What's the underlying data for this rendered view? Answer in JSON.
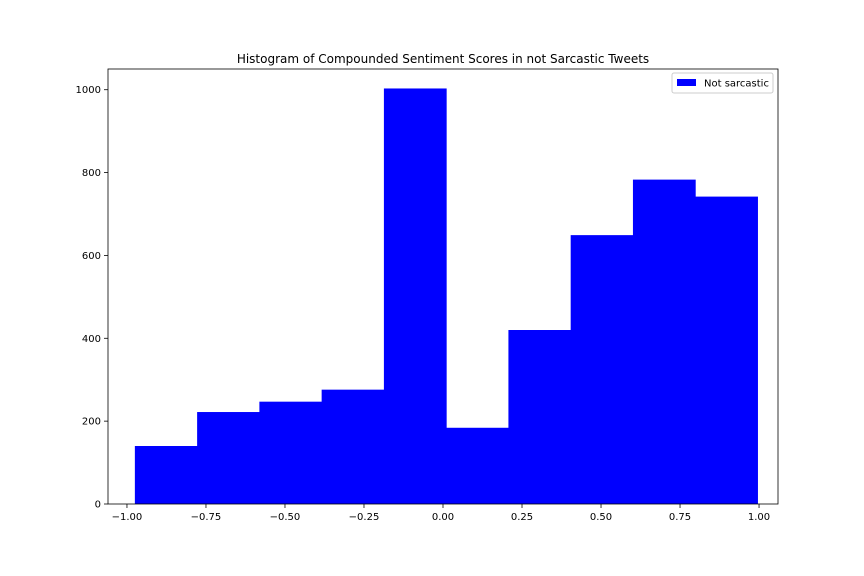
{
  "chart_data": {
    "type": "histogram",
    "title": "Histogram of Compounded Sentiment Scores in not Sarcastic Tweets",
    "xlabel": "",
    "ylabel": "",
    "xlim": [
      -1.06,
      1.06
    ],
    "ylim": [
      0,
      1050
    ],
    "x_ticks": [
      -1.0,
      -0.75,
      -0.5,
      -0.25,
      0.0,
      0.25,
      0.5,
      0.75,
      1.0
    ],
    "x_tick_labels": [
      "−1.00",
      "−0.75",
      "−0.50",
      "−0.25",
      "0.00",
      "0.25",
      "0.50",
      "0.75",
      "1.00"
    ],
    "y_ticks": [
      0,
      200,
      400,
      600,
      800,
      1000
    ],
    "y_tick_labels": [
      "0",
      "200",
      "400",
      "600",
      "800",
      "1000"
    ],
    "bin_edges": [
      -0.975,
      -0.778,
      -0.581,
      -0.384,
      -0.187,
      0.01,
      0.207,
      0.404,
      0.601,
      0.798,
      0.995
    ],
    "series": [
      {
        "name": "Not sarcastic",
        "color": "#0000ff",
        "values": [
          140,
          222,
          247,
          276,
          1003,
          184,
          420,
          649,
          783,
          742
        ]
      }
    ],
    "grid": false,
    "legend_position": "top-right"
  }
}
